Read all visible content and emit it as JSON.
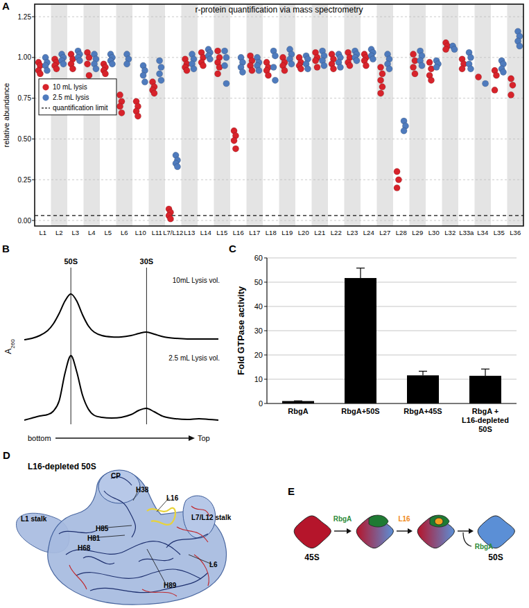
{
  "panel_labels": [
    "A",
    "B",
    "C",
    "D",
    "E"
  ],
  "chart_data": [
    {
      "type": "scatter",
      "title": "r-protein quantification via mass spectrometry",
      "y_label": "relative abundance",
      "categories": [
        "L1",
        "L2",
        "L3",
        "L4",
        "L5",
        "L6",
        "L10",
        "L11",
        "L7/L12",
        "L13",
        "L14",
        "L15",
        "L16",
        "L17",
        "L18",
        "L19",
        "L20",
        "L21",
        "L22",
        "L23",
        "L24",
        "L27",
        "L28",
        "L29",
        "L30",
        "L32",
        "L33a",
        "L34",
        "L35",
        "L36"
      ],
      "series": [
        {
          "name": "10 mL lysis",
          "color": "#d7232b",
          "marker": "circle",
          "values": [
            [
              0.97,
              0.95,
              0.92,
              0.9
            ],
            [
              0.99,
              0.97,
              0.95,
              0.93
            ],
            [
              1.02,
              0.99,
              0.96,
              0.93
            ],
            [
              1.03,
              1.0,
              0.96,
              0.89
            ],
            [
              0.96,
              0.94,
              0.92,
              0.9
            ],
            [
              0.77,
              0.73,
              0.7,
              0.66
            ],
            [
              0.73,
              0.7,
              0.67,
              0.64
            ],
            [
              0.85,
              0.82,
              0.8,
              0.78
            ],
            [
              0.07,
              0.05,
              0.03,
              0.01
            ],
            [
              0.99,
              0.96,
              0.94,
              0.92
            ],
            [
              1.03,
              1.0,
              0.97,
              0.95
            ],
            [
              1.04,
              1.0,
              0.97,
              0.94,
              0.9
            ],
            [
              0.55,
              0.52,
              0.49,
              0.44
            ],
            [
              1.01,
              0.98,
              0.95,
              0.92
            ],
            [
              0.97,
              0.94,
              0.92,
              0.89
            ],
            [
              1.0,
              0.97,
              0.95,
              0.92
            ],
            [
              1.0,
              0.97,
              0.95,
              0.93
            ],
            [
              1.03,
              1.0,
              0.98,
              0.94
            ],
            [
              1.02,
              0.99,
              0.96,
              0.93
            ],
            [
              1.03,
              1.0,
              0.97,
              0.95
            ],
            [
              1.02,
              1.0,
              0.98,
              0.95
            ],
            [
              0.94,
              0.9,
              0.86,
              0.82,
              0.78
            ],
            [
              0.3,
              0.25,
              0.2
            ],
            [
              1.02,
              0.98,
              0.94,
              0.9
            ],
            [
              0.97,
              0.93,
              0.89,
              0.86
            ],
            [
              1.09,
              1.07,
              1.05
            ],
            [
              0.99,
              0.96,
              0.93
            ],
            [
              0.88
            ],
            [
              0.92,
              0.89,
              0.8
            ],
            [
              0.87,
              0.83,
              0.77
            ]
          ]
        },
        {
          "name": "2.5 mL lysis",
          "color": "#4f7bbd",
          "marker": "circle",
          "values": [
            [
              1.0,
              0.97,
              0.95,
              0.92
            ],
            [
              1.02,
              1.0,
              0.98,
              0.96
            ],
            [
              1.04,
              1.02,
              1.0,
              0.98
            ],
            [
              1.02,
              0.99,
              0.96,
              0.93
            ],
            [
              1.02,
              1.0,
              0.98,
              0.96
            ],
            [
              1.02,
              0.99,
              0.96
            ],
            [
              0.95,
              0.92,
              0.89,
              0.85
            ],
            [
              0.98,
              0.94,
              0.9,
              0.86
            ],
            [
              0.4,
              0.37,
              0.35,
              0.33
            ],
            [
              1.02,
              0.99,
              0.96,
              0.93
            ],
            [
              1.05,
              1.03,
              1.01,
              0.99
            ],
            [
              1.04,
              1.0,
              0.95,
              0.84
            ],
            [
              1.0,
              0.97,
              0.94,
              0.91
            ],
            [
              1.0,
              0.97,
              0.95,
              0.92
            ],
            [
              1.04,
              1.01,
              0.94,
              0.86
            ],
            [
              1.05,
              1.02,
              0.99,
              0.96
            ],
            [
              1.01,
              0.99,
              0.96,
              0.93
            ],
            [
              1.04,
              1.01,
              0.98,
              0.95
            ],
            [
              1.02,
              1.0,
              0.97,
              0.94
            ],
            [
              1.04,
              1.02,
              1.0,
              0.98
            ],
            [
              1.05,
              1.03,
              1.01,
              0.99
            ],
            [
              1.02,
              0.99,
              0.96,
              0.93
            ],
            [
              0.61,
              0.58,
              0.55
            ],
            [
              1.04,
              1.01,
              0.98,
              0.95
            ],
            [
              0.98,
              0.96,
              0.94
            ],
            [
              1.07,
              1.05
            ],
            [
              1.03,
              1.0,
              0.96,
              0.93
            ],
            [
              0.84
            ],
            [
              0.98,
              0.96,
              0.93,
              0.91
            ],
            [
              1.16,
              1.13,
              1.1,
              1.07
            ]
          ]
        }
      ],
      "ylim": [
        -0.034,
        1.327
      ],
      "yticks": [
        {
          "value": 0,
          "label": "0.00"
        },
        {
          "value": 0.25,
          "label": "0.25"
        },
        {
          "value": 0.5,
          "label": "0.50"
        },
        {
          "value": 0.75,
          "label": "0.75"
        },
        {
          "value": 1,
          "label": "1.00"
        },
        {
          "value": 1.25,
          "label": "1.25"
        }
      ],
      "grid": true,
      "legend": "upper left",
      "reference_line": {
        "value": 0.03,
        "label": "quantification limit",
        "line_style": "dashed"
      }
    },
    {
      "type": "line",
      "y_label": "A260",
      "x_label_start": "bottom",
      "x_label_end": "Top",
      "x": [
        0,
        0.04,
        0.08,
        0.12,
        0.15,
        0.18,
        0.21,
        0.24,
        0.27,
        0.3,
        0.33,
        0.36,
        0.4,
        0.45,
        0.5,
        0.55,
        0.59,
        0.63,
        0.67,
        0.72,
        0.78,
        0.84,
        0.9,
        0.95,
        1.0
      ],
      "series": [
        {
          "name": "10mL Lysis vol.",
          "color": "#000000",
          "values": [
            0.02,
            0.04,
            0.08,
            0.15,
            0.25,
            0.4,
            0.58,
            0.68,
            0.58,
            0.38,
            0.22,
            0.13,
            0.08,
            0.06,
            0.06,
            0.08,
            0.11,
            0.13,
            0.1,
            0.06,
            0.04,
            0.03,
            0.03,
            0.03,
            0.03
          ]
        },
        {
          "name": "2.5 mL Lysis vol.",
          "color": "#000000",
          "values": [
            0.02,
            0.05,
            0.08,
            0.1,
            0.15,
            0.3,
            0.7,
            0.95,
            0.72,
            0.38,
            0.18,
            0.09,
            0.06,
            0.05,
            0.06,
            0.1,
            0.16,
            0.19,
            0.14,
            0.07,
            0.04,
            0.03,
            0.04,
            0.03,
            0.02
          ]
        }
      ],
      "xlim": [
        0,
        1
      ],
      "ylim": [
        0,
        1
      ],
      "tick_labels": false,
      "reference_lines": [
        {
          "value": 0.24,
          "label": "50S"
        },
        {
          "value": 0.63,
          "label": "30S"
        }
      ]
    },
    {
      "type": "bar",
      "y_label": "Fold GTPase activity",
      "categories": [
        "RbgA",
        "RbgA+50S",
        "RbgA+45S",
        "RbgA + L16-depleted 50S"
      ],
      "values": [
        1,
        51.7,
        11.6,
        11.4
      ],
      "errors": [
        0.1,
        4.1,
        1.7,
        2.8
      ],
      "color": "#000000",
      "ylim": [
        0,
        60
      ],
      "yticks": [
        0,
        10,
        20,
        30,
        40,
        50,
        60
      ],
      "grid": true
    }
  ],
  "diagram_d": {
    "title": "L16-depleted 50S",
    "labels": [
      "CP",
      "H38",
      "L16",
      "L7/L12 stalk",
      "L1 stalk",
      "H85",
      "H81",
      "H68",
      "L6",
      "H89"
    ]
  },
  "diagram_e": {
    "states": [
      "45S",
      "50S"
    ],
    "factors": [
      "RbgA",
      "L16",
      "RbgA"
    ]
  }
}
